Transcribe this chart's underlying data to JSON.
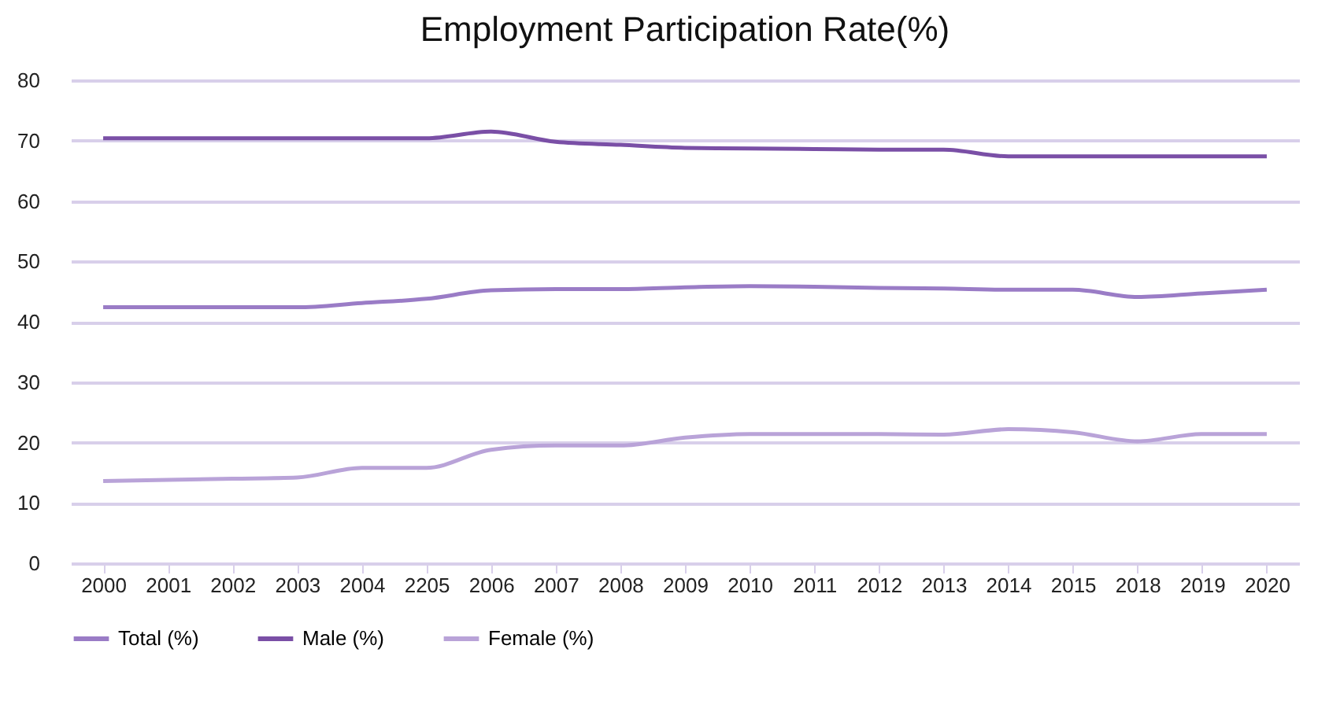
{
  "chart_data": {
    "type": "line",
    "title": "Employment Participation Rate(%)",
    "categories": [
      "2000",
      "2001",
      "2002",
      "2003",
      "2004",
      "2205",
      "2006",
      "2007",
      "2008",
      "2009",
      "2010",
      "2011",
      "2012",
      "2013",
      "2014",
      "2015",
      "2018",
      "2019",
      "2020"
    ],
    "series": [
      {
        "name": "Total (%)",
        "color": "#9a7cc6",
        "values": [
          42.4,
          42.4,
          42.4,
          42.4,
          43.1,
          43.8,
          45.2,
          45.4,
          45.4,
          45.7,
          45.9,
          45.8,
          45.6,
          45.5,
          45.3,
          45.3,
          44.1,
          44.7,
          45.3
        ]
      },
      {
        "name": "Male (%)",
        "color": "#7a4fa6",
        "values": [
          70.4,
          70.4,
          70.4,
          70.4,
          70.4,
          70.4,
          71.5,
          69.8,
          69.3,
          68.8,
          68.7,
          68.6,
          68.5,
          68.5,
          67.4,
          67.4,
          67.4,
          67.4,
          67.4
        ]
      },
      {
        "name": "Female (%)",
        "color": "#b9a3d8",
        "values": [
          13.6,
          13.8,
          14.0,
          14.2,
          15.8,
          15.8,
          18.8,
          19.5,
          19.5,
          20.8,
          21.4,
          21.4,
          21.4,
          21.3,
          22.2,
          21.7,
          20.2,
          21.4,
          21.4
        ]
      }
    ],
    "ylim": [
      0,
      80
    ],
    "yticks": [
      0,
      10,
      20,
      30,
      40,
      50,
      60,
      70,
      80
    ],
    "grid": "y",
    "legend": "bottom",
    "marker": "none",
    "line_style": "solid"
  }
}
